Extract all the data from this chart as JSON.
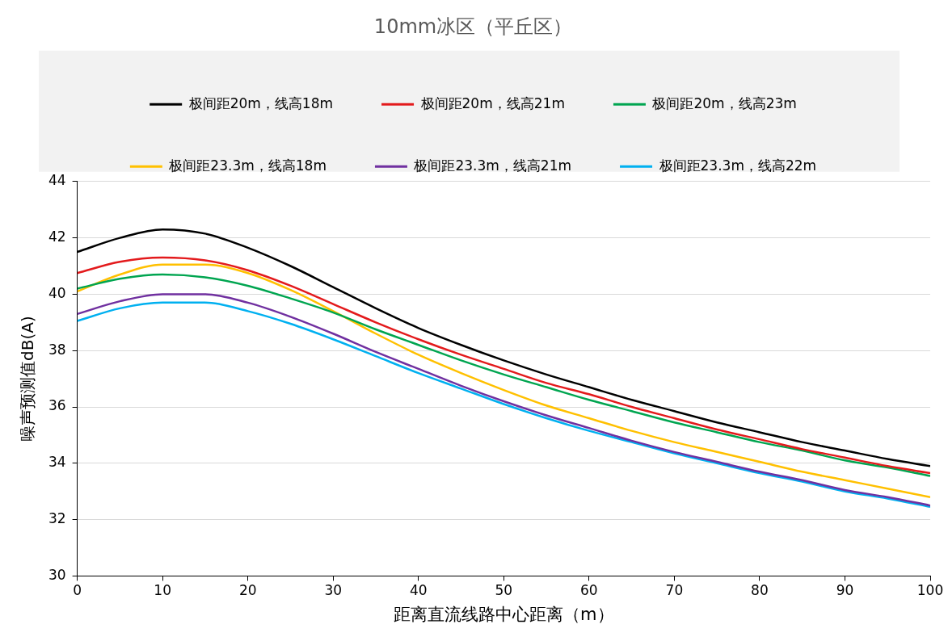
{
  "chart_data": {
    "type": "line",
    "title": "10mm冰区（平丘区）",
    "xlabel": "距离直流线路中心距离（m）",
    "ylabel": "噪声预测值dB(A)",
    "x": [
      0,
      5,
      10,
      15,
      20,
      25,
      30,
      35,
      40,
      45,
      50,
      55,
      60,
      65,
      70,
      75,
      80,
      85,
      90,
      95,
      100
    ],
    "xlim": [
      0,
      100
    ],
    "xticks": [
      0,
      10,
      20,
      30,
      40,
      50,
      60,
      70,
      80,
      90,
      100
    ],
    "ylim": [
      30,
      44
    ],
    "yticks": [
      30,
      32,
      34,
      36,
      38,
      40,
      42,
      44
    ],
    "grid": "y",
    "legend": "top",
    "marker": "none",
    "line_style": "solid",
    "series": [
      {
        "name": "极间距20m，线高18m",
        "color": "#000000",
        "values": [
          41.5,
          42.0,
          42.3,
          42.15,
          41.65,
          41.0,
          40.25,
          39.5,
          38.8,
          38.2,
          37.65,
          37.15,
          36.7,
          36.25,
          35.85,
          35.45,
          35.1,
          34.75,
          34.45,
          34.15,
          33.9
        ]
      },
      {
        "name": "极间距20m，线高21m",
        "color": "#e31a1c",
        "values": [
          40.75,
          41.15,
          41.3,
          41.2,
          40.85,
          40.3,
          39.65,
          39.0,
          38.4,
          37.85,
          37.35,
          36.85,
          36.45,
          36.0,
          35.6,
          35.2,
          34.85,
          34.5,
          34.2,
          33.9,
          33.65
        ]
      },
      {
        "name": "极间距20m，线高23m",
        "color": "#00a550",
        "values": [
          40.2,
          40.55,
          40.7,
          40.6,
          40.3,
          39.85,
          39.35,
          38.75,
          38.2,
          37.65,
          37.15,
          36.7,
          36.25,
          35.85,
          35.45,
          35.1,
          34.75,
          34.45,
          34.1,
          33.85,
          33.55
        ]
      },
      {
        "name": "极间距23.3m，线高18m",
        "color": "#ffc000",
        "values": [
          40.1,
          40.7,
          41.05,
          41.05,
          40.75,
          40.15,
          39.4,
          38.6,
          37.85,
          37.2,
          36.6,
          36.05,
          35.6,
          35.15,
          34.75,
          34.4,
          34.05,
          33.7,
          33.4,
          33.1,
          32.8
        ]
      },
      {
        "name": "极间距23.3m，线高21m",
        "color": "#7030a0",
        "values": [
          39.3,
          39.75,
          40.0,
          40.0,
          39.7,
          39.2,
          38.6,
          37.95,
          37.35,
          36.75,
          36.2,
          35.7,
          35.25,
          34.8,
          34.4,
          34.05,
          33.7,
          33.4,
          33.05,
          32.8,
          32.5
        ]
      },
      {
        "name": "极间距23.3m，线高22m",
        "color": "#00b0f0",
        "values": [
          39.05,
          39.5,
          39.7,
          39.7,
          39.4,
          38.95,
          38.4,
          37.8,
          37.2,
          36.65,
          36.1,
          35.6,
          35.15,
          34.75,
          34.35,
          34.0,
          33.65,
          33.35,
          33.0,
          32.75,
          32.45
        ]
      }
    ]
  }
}
